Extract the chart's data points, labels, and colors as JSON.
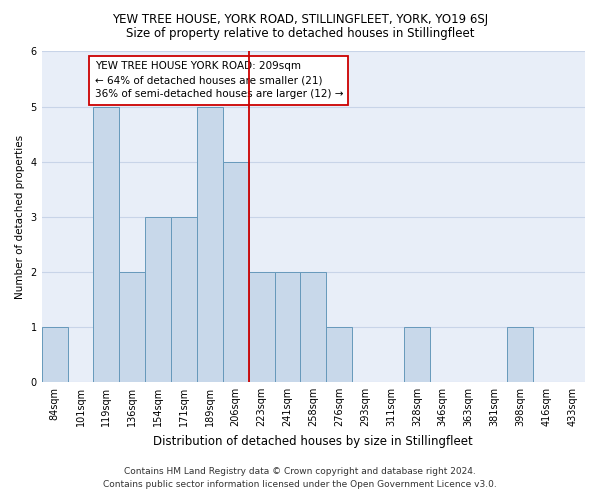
{
  "title": "YEW TREE HOUSE, YORK ROAD, STILLINGFLEET, YORK, YO19 6SJ",
  "subtitle": "Size of property relative to detached houses in Stillingfleet",
  "xlabel": "Distribution of detached houses by size in Stillingfleet",
  "ylabel": "Number of detached properties",
  "categories": [
    "84sqm",
    "101sqm",
    "119sqm",
    "136sqm",
    "154sqm",
    "171sqm",
    "189sqm",
    "206sqm",
    "223sqm",
    "241sqm",
    "258sqm",
    "276sqm",
    "293sqm",
    "311sqm",
    "328sqm",
    "346sqm",
    "363sqm",
    "381sqm",
    "398sqm",
    "416sqm",
    "433sqm"
  ],
  "values": [
    1,
    0,
    5,
    2,
    3,
    3,
    5,
    4,
    2,
    2,
    2,
    1,
    0,
    0,
    1,
    0,
    0,
    0,
    1,
    0,
    0
  ],
  "highlight_index": 7,
  "bar_color": "#c8d8ea",
  "bar_edge_color": "#6699bb",
  "highlight_line_color": "#cc0000",
  "annotation_line1": "YEW TREE HOUSE YORK ROAD: 209sqm",
  "annotation_line2": "← 64% of detached houses are smaller (21)",
  "annotation_line3": "36% of semi-detached houses are larger (12) →",
  "ylim": [
    0,
    6
  ],
  "yticks": [
    0,
    1,
    2,
    3,
    4,
    5,
    6
  ],
  "grid_color": "#c8d4e8",
  "background_color": "#e8eef8",
  "footer_line1": "Contains HM Land Registry data © Crown copyright and database right 2024.",
  "footer_line2": "Contains public sector information licensed under the Open Government Licence v3.0.",
  "title_fontsize": 8.5,
  "subtitle_fontsize": 8.5,
  "xlabel_fontsize": 8.5,
  "ylabel_fontsize": 7.5,
  "tick_fontsize": 7,
  "annotation_fontsize": 7.5,
  "footer_fontsize": 6.5
}
